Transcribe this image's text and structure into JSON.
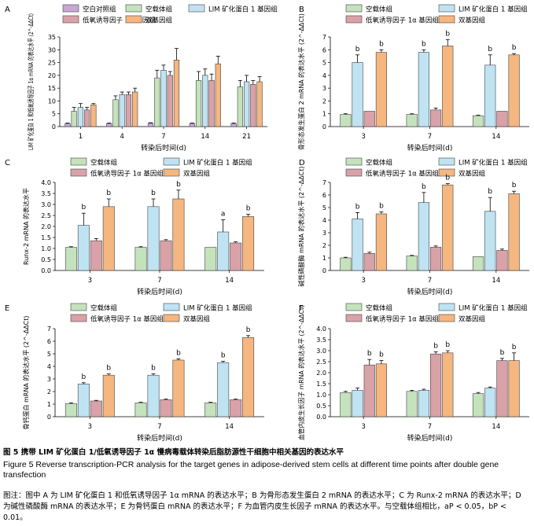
{
  "caption": {
    "zh": "图 5 携带 LIM 矿化蛋白 1/低氧诱导因子 1α 慢病毒载体转染后脂肪源性干细胞中相关基因的表达水平",
    "en": "Figure 5 Reverse transcription-PCR analysis for the target genes in adipose-derived stem cells at different time points after double gene transfection",
    "note": "图注：图中 A 为 LIM 矿化蛋白 1 和低氧诱导因子 1α mRNA 的表达水平；B 为骨形态发生蛋白 2 mRNA 的表达水平；C 为 Runx-2 mRNA 的表达水平；D 为碱性磷酸酶 mRNA 的表达水平；E 为骨钙蛋白 mRNA 的表达水平；F 为血管内皮生长因子 mRNA 的表达水平。与空载体组相比，aP < 0.05，bP < 0.01。"
  },
  "colors": {
    "blank": "#c9a8d8",
    "empty_vector": "#c4e3bc",
    "lim1": "#bfe3f3",
    "hif1a": "#d9a2a8",
    "double": "#f5b680"
  },
  "chart_data": [
    {
      "panel": "A",
      "type": "bar",
      "categories": [
        "1",
        "4",
        "7",
        "14",
        "21"
      ],
      "xlabel": "转染后时间(d)",
      "ylabel": "LIM 矿化蛋白 1 和低氧诱导因子 1α mRNA 的表达水平 (2^-ΔΔCt)",
      "ylim": [
        0,
        35
      ],
      "yticks": [
        0,
        5,
        10,
        15,
        20,
        25,
        30,
        35
      ],
      "legend": [
        "空白对照组",
        "空载体组",
        "LIM 矿化蛋白 1 基因组",
        "低氧诱导因子 1α 基因组",
        "双基因组"
      ],
      "series": [
        {
          "name": "空白对照组",
          "color_key": "blank",
          "values": [
            1.2,
            1.2,
            1.3,
            1.2,
            1.2
          ],
          "err": [
            0.2,
            0.2,
            0.2,
            0.2,
            0.2
          ]
        },
        {
          "name": "空载体组",
          "color_key": "empty_vector",
          "values": [
            6.0,
            10.5,
            19.0,
            18.0,
            15.5
          ],
          "err": [
            1.5,
            1.5,
            3.0,
            3.5,
            2.5
          ]
        },
        {
          "name": "LIM 矿化蛋白 1 基因组",
          "color_key": "lim1",
          "values": [
            7.5,
            12.5,
            22.0,
            20.0,
            17.5
          ],
          "err": [
            1.5,
            1.0,
            2.0,
            2.5,
            2.5
          ]
        },
        {
          "name": "低氧诱导因子 1α 基因组",
          "color_key": "hif1a",
          "values": [
            6.5,
            12.5,
            20.0,
            18.0,
            16.5
          ],
          "err": [
            1.0,
            1.0,
            1.5,
            2.5,
            1.5
          ]
        },
        {
          "name": "双基因组",
          "color_key": "double",
          "values": [
            8.5,
            13.5,
            26.0,
            24.5,
            17.5
          ],
          "err": [
            0.5,
            1.5,
            4.5,
            3.0,
            2.0
          ]
        }
      ],
      "sig": []
    },
    {
      "panel": "B",
      "type": "bar",
      "categories": [
        "3",
        "7",
        "14"
      ],
      "xlabel": "转染后时间(d)",
      "ylabel": "骨形态发生蛋白 2 mRNA 的表达水平 (2^-ΔΔCt)",
      "ylim": [
        0,
        7
      ],
      "yticks": [
        0,
        1,
        2,
        3,
        4,
        5,
        6,
        7
      ],
      "legend": [
        "空载体组",
        "LIM 矿化蛋白 1 基因组",
        "低氧诱导因子 1α 基因组",
        "双基因组"
      ],
      "series": [
        {
          "name": "空载体组",
          "color_key": "empty_vector",
          "values": [
            0.95,
            0.95,
            0.85
          ],
          "err": [
            0.05,
            0.05,
            0.05
          ]
        },
        {
          "name": "LIM 矿化蛋白 1 基因组",
          "color_key": "lim1",
          "values": [
            5.0,
            5.8,
            4.8
          ],
          "err": [
            0.6,
            0.2,
            0.8
          ]
        },
        {
          "name": "低氧诱导因子 1α 基因组",
          "color_key": "hif1a",
          "values": [
            1.2,
            1.3,
            1.2
          ],
          "err": [
            0.0,
            0.15,
            0.0
          ]
        },
        {
          "name": "双基因组",
          "color_key": "double",
          "values": [
            5.8,
            6.3,
            5.6
          ],
          "err": [
            0.2,
            0.5,
            0.1
          ]
        }
      ],
      "sig": [
        {
          "series": 1,
          "cat": 0,
          "label": "b"
        },
        {
          "series": 3,
          "cat": 0,
          "label": "b"
        },
        {
          "series": 1,
          "cat": 1,
          "label": "b"
        },
        {
          "series": 3,
          "cat": 1,
          "label": "b"
        },
        {
          "series": 1,
          "cat": 2,
          "label": "b"
        },
        {
          "series": 3,
          "cat": 2,
          "label": "b"
        }
      ]
    },
    {
      "panel": "C",
      "type": "bar",
      "categories": [
        "3",
        "7",
        "14"
      ],
      "xlabel": "转染后时间(d)",
      "ylabel": "Runx-2 mRNA 的表达水平",
      "ylim": [
        0,
        4
      ],
      "yticks": [
        0,
        0.5,
        1.0,
        1.5,
        2.0,
        2.5,
        3.0,
        3.5,
        4.0
      ],
      "legend": [
        "空载体组",
        "LIM 矿化蛋白 1 基因组",
        "低氧诱导因子 1α 基因组",
        "双基因组"
      ],
      "series": [
        {
          "name": "空载体组",
          "color_key": "empty_vector",
          "values": [
            1.05,
            1.05,
            1.05
          ],
          "err": [
            0.03,
            0.03,
            0.0
          ]
        },
        {
          "name": "LIM 矿化蛋白 1 基因组",
          "color_key": "lim1",
          "values": [
            2.05,
            2.9,
            1.75
          ],
          "err": [
            0.55,
            0.35,
            0.55
          ]
        },
        {
          "name": "低氧诱导因子 1α 基因组",
          "color_key": "hif1a",
          "values": [
            1.35,
            1.35,
            1.25
          ],
          "err": [
            0.1,
            0.05,
            0.05
          ]
        },
        {
          "name": "双基因组",
          "color_key": "double",
          "values": [
            2.9,
            3.25,
            2.45
          ],
          "err": [
            0.35,
            0.4,
            0.1
          ]
        }
      ],
      "sig": [
        {
          "series": 1,
          "cat": 0,
          "label": "b"
        },
        {
          "series": 3,
          "cat": 0,
          "label": "b"
        },
        {
          "series": 1,
          "cat": 1,
          "label": "b"
        },
        {
          "series": 3,
          "cat": 1,
          "label": "b"
        },
        {
          "series": 1,
          "cat": 2,
          "label": "a"
        },
        {
          "series": 3,
          "cat": 2,
          "label": "b"
        }
      ]
    },
    {
      "panel": "D",
      "type": "bar",
      "categories": [
        "3",
        "7",
        "14"
      ],
      "xlabel": "转染后时间(d)",
      "ylabel": "碱性磷酸酶 mRNA 的表达水平 (2^-ΔΔCt)",
      "ylim": [
        0,
        7
      ],
      "yticks": [
        0,
        1,
        2,
        3,
        4,
        5,
        6,
        7
      ],
      "legend": [
        "空载体组",
        "LIM 矿化蛋白 1 基因组",
        "低氧诱导因子 1α 基因组",
        "双基因组"
      ],
      "series": [
        {
          "name": "空载体组",
          "color_key": "empty_vector",
          "values": [
            1.0,
            1.15,
            1.1
          ],
          "err": [
            0.05,
            0.05,
            0.0
          ]
        },
        {
          "name": "LIM 矿化蛋白 1 基因组",
          "color_key": "lim1",
          "values": [
            4.1,
            5.4,
            4.7
          ],
          "err": [
            0.5,
            0.8,
            1.1
          ]
        },
        {
          "name": "低氧诱导因子 1α 基因组",
          "color_key": "hif1a",
          "values": [
            1.35,
            1.85,
            1.6
          ],
          "err": [
            0.1,
            0.1,
            0.1
          ]
        },
        {
          "name": "双基因组",
          "color_key": "double",
          "values": [
            4.5,
            6.8,
            6.1
          ],
          "err": [
            0.15,
            0.1,
            0.2
          ]
        }
      ],
      "sig": [
        {
          "series": 1,
          "cat": 0,
          "label": "b"
        },
        {
          "series": 3,
          "cat": 0,
          "label": "b"
        },
        {
          "series": 1,
          "cat": 1,
          "label": "b"
        },
        {
          "series": 3,
          "cat": 1,
          "label": "b"
        },
        {
          "series": 1,
          "cat": 2,
          "label": "b"
        },
        {
          "series": 3,
          "cat": 2,
          "label": "b"
        }
      ]
    },
    {
      "panel": "E",
      "type": "bar",
      "categories": [
        "3",
        "7",
        "14"
      ],
      "xlabel": "转染后时间(d)",
      "ylabel": "骨钙蛋白 mRNA 的表达水平 (2^-ΔΔCt)",
      "ylim": [
        0,
        7
      ],
      "yticks": [
        0,
        1,
        2,
        3,
        4,
        5,
        6,
        7
      ],
      "legend": [
        "空载体组",
        "LIM 矿化蛋白 1 基因组",
        "低氧诱导因子 1α 基因组",
        "双基因组"
      ],
      "series": [
        {
          "name": "空载体组",
          "color_key": "empty_vector",
          "values": [
            1.05,
            1.1,
            1.1
          ],
          "err": [
            0.05,
            0.05,
            0.05
          ]
        },
        {
          "name": "LIM 矿化蛋白 1 基因组",
          "color_key": "lim1",
          "values": [
            2.6,
            3.3,
            4.3
          ],
          "err": [
            0.1,
            0.1,
            0.1
          ]
        },
        {
          "name": "低氧诱导因子 1α 基因组",
          "color_key": "hif1a",
          "values": [
            1.25,
            1.35,
            1.35
          ],
          "err": [
            0.05,
            0.05,
            0.05
          ]
        },
        {
          "name": "双基因组",
          "color_key": "double",
          "values": [
            3.3,
            4.5,
            6.3
          ],
          "err": [
            0.1,
            0.1,
            0.15
          ]
        }
      ],
      "sig": [
        {
          "series": 1,
          "cat": 0,
          "label": "b"
        },
        {
          "series": 3,
          "cat": 0,
          "label": "b"
        },
        {
          "series": 1,
          "cat": 1,
          "label": "b"
        },
        {
          "series": 3,
          "cat": 1,
          "label": "b"
        },
        {
          "series": 1,
          "cat": 2,
          "label": "b"
        },
        {
          "series": 3,
          "cat": 2,
          "label": "b"
        }
      ]
    },
    {
      "panel": "F",
      "type": "bar",
      "categories": [
        "3",
        "7",
        "14"
      ],
      "xlabel": "转染后时间(d)",
      "ylabel": "血管内皮生长因子 mRNA 的表达水平 (2^-ΔΔCt)",
      "ylim": [
        0,
        4
      ],
      "yticks": [
        0,
        0.5,
        1.0,
        1.5,
        2.0,
        2.5,
        3.0,
        3.5,
        4.0
      ],
      "legend": [
        "空载体组",
        "LIM 矿化蛋白 1 基因组",
        "低氧诱导因子 1α 基因组",
        "双基因组"
      ],
      "series": [
        {
          "name": "空载体组",
          "color_key": "empty_vector",
          "values": [
            1.1,
            1.15,
            1.05
          ],
          "err": [
            0.05,
            0.05,
            0.05
          ]
        },
        {
          "name": "LIM 矿化蛋白 1 基因组",
          "color_key": "lim1",
          "values": [
            1.2,
            1.2,
            1.3
          ],
          "err": [
            0.1,
            0.05,
            0.05
          ]
        },
        {
          "name": "低氧诱导因子 1α 基因组",
          "color_key": "hif1a",
          "values": [
            2.35,
            2.85,
            2.55
          ],
          "err": [
            0.25,
            0.1,
            0.1
          ]
        },
        {
          "name": "双基因组",
          "color_key": "double",
          "values": [
            2.4,
            2.9,
            2.55
          ],
          "err": [
            0.15,
            0.1,
            0.35
          ]
        }
      ],
      "sig": [
        {
          "series": 2,
          "cat": 0,
          "label": "b"
        },
        {
          "series": 3,
          "cat": 0,
          "label": "b"
        },
        {
          "series": 2,
          "cat": 1,
          "label": "b"
        },
        {
          "series": 3,
          "cat": 1,
          "label": "b"
        },
        {
          "series": 2,
          "cat": 2,
          "label": "b"
        },
        {
          "series": 3,
          "cat": 2,
          "label": "b"
        }
      ]
    }
  ]
}
